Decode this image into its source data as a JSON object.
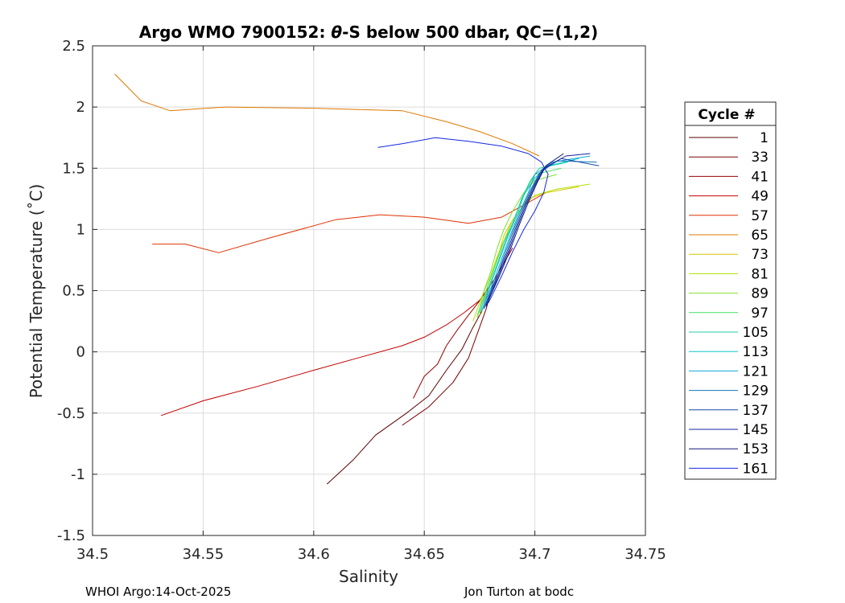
{
  "chart_data": {
    "type": "line",
    "title_prefix": "Argo WMO 7900152: ",
    "title_theta": "θ",
    "title_suffix": "-S below 500 dbar,  QC=(1,2)",
    "xlabel": "Salinity",
    "ylabel": "Potential Temperature (˚C)",
    "xlim": [
      34.5,
      34.75
    ],
    "ylim": [
      -1.5,
      2.5
    ],
    "xticks": [
      34.5,
      34.55,
      34.6,
      34.65,
      34.7,
      34.75
    ],
    "xtick_labels": [
      "34.5",
      "34.55",
      "34.6",
      "34.65",
      "34.7",
      "34.75"
    ],
    "yticks": [
      -1.5,
      -1,
      -0.5,
      0,
      0.5,
      1,
      1.5,
      2,
      2.5
    ],
    "ytick_labels": [
      "-1.5",
      "-1",
      "-0.5",
      "0",
      "0.5",
      "1",
      "1.5",
      "2",
      "2.5"
    ],
    "grid": true,
    "legend_title": "Cycle #",
    "legend_position": "outside-right",
    "series": [
      {
        "name": "1",
        "color": "#5a0000",
        "points": [
          [
            34.606,
            -1.08
          ],
          [
            34.618,
            -0.88
          ],
          [
            34.628,
            -0.68
          ],
          [
            34.642,
            -0.5
          ],
          [
            34.652,
            -0.36
          ],
          [
            34.66,
            -0.15
          ],
          [
            34.667,
            0.02
          ],
          [
            34.672,
            0.2
          ],
          [
            34.676,
            0.33
          ],
          [
            34.679,
            0.5
          ]
        ]
      },
      {
        "name": "33",
        "color": "#7a0000",
        "points": [
          [
            34.64,
            -0.6
          ],
          [
            34.652,
            -0.45
          ],
          [
            34.663,
            -0.25
          ],
          [
            34.67,
            -0.05
          ],
          [
            34.675,
            0.2
          ],
          [
            34.678,
            0.35
          ],
          [
            34.681,
            0.55
          ]
        ]
      },
      {
        "name": "41",
        "color": "#9a0000",
        "points": [
          [
            34.645,
            -0.38
          ],
          [
            34.65,
            -0.2
          ],
          [
            34.656,
            -0.1
          ],
          [
            34.66,
            0.05
          ],
          [
            34.665,
            0.18
          ],
          [
            34.67,
            0.3
          ],
          [
            34.676,
            0.44
          ],
          [
            34.682,
            0.6
          ]
        ]
      },
      {
        "name": "49",
        "color": "#c40000",
        "points": [
          [
            34.531,
            -0.52
          ],
          [
            34.55,
            -0.4
          ],
          [
            34.575,
            -0.28
          ],
          [
            34.6,
            -0.15
          ],
          [
            34.62,
            -0.05
          ],
          [
            34.64,
            0.05
          ],
          [
            34.65,
            0.12
          ],
          [
            34.66,
            0.22
          ],
          [
            34.668,
            0.32
          ],
          [
            34.675,
            0.42
          ],
          [
            34.682,
            0.6
          ],
          [
            34.69,
            0.85
          ]
        ]
      },
      {
        "name": "57",
        "color": "#e03000",
        "points": [
          [
            34.527,
            0.88
          ],
          [
            34.542,
            0.88
          ],
          [
            34.557,
            0.81
          ],
          [
            34.58,
            0.93
          ],
          [
            34.61,
            1.08
          ],
          [
            34.63,
            1.12
          ],
          [
            34.65,
            1.1
          ],
          [
            34.67,
            1.05
          ],
          [
            34.685,
            1.1
          ],
          [
            34.695,
            1.2
          ],
          [
            34.705,
            1.3
          ]
        ]
      },
      {
        "name": "65",
        "color": "#e07800",
        "points": [
          [
            34.51,
            2.27
          ],
          [
            34.522,
            2.05
          ],
          [
            34.535,
            1.97
          ],
          [
            34.56,
            2.0
          ],
          [
            34.6,
            1.99
          ],
          [
            34.64,
            1.97
          ],
          [
            34.66,
            1.88
          ],
          [
            34.675,
            1.8
          ],
          [
            34.69,
            1.7
          ],
          [
            34.702,
            1.6
          ]
        ]
      },
      {
        "name": "73",
        "color": "#d8c800",
        "points": [
          [
            34.675,
            0.3
          ],
          [
            34.678,
            0.5
          ],
          [
            34.681,
            0.65
          ],
          [
            34.684,
            0.82
          ],
          [
            34.686,
            0.95
          ],
          [
            34.689,
            1.05
          ],
          [
            34.693,
            1.15
          ],
          [
            34.697,
            1.25
          ],
          [
            34.705,
            1.3
          ],
          [
            34.72,
            1.35
          ]
        ]
      },
      {
        "name": "81",
        "color": "#b0e000",
        "points": [
          [
            34.672,
            0.25
          ],
          [
            34.676,
            0.45
          ],
          [
            34.68,
            0.62
          ],
          [
            34.683,
            0.78
          ],
          [
            34.687,
            0.95
          ],
          [
            34.69,
            1.08
          ],
          [
            34.695,
            1.2
          ],
          [
            34.7,
            1.28
          ],
          [
            34.71,
            1.33
          ],
          [
            34.725,
            1.37
          ]
        ]
      },
      {
        "name": "89",
        "color": "#80e030",
        "points": [
          [
            34.674,
            0.28
          ],
          [
            34.677,
            0.5
          ],
          [
            34.68,
            0.65
          ],
          [
            34.683,
            0.85
          ],
          [
            34.686,
            1.0
          ],
          [
            34.69,
            1.15
          ],
          [
            34.695,
            1.3
          ],
          [
            34.7,
            1.4
          ],
          [
            34.71,
            1.45
          ]
        ]
      },
      {
        "name": "97",
        "color": "#40e060",
        "points": [
          [
            34.674,
            0.3
          ],
          [
            34.678,
            0.5
          ],
          [
            34.682,
            0.7
          ],
          [
            34.686,
            0.9
          ],
          [
            34.69,
            1.05
          ],
          [
            34.693,
            1.2
          ],
          [
            34.697,
            1.35
          ],
          [
            34.7,
            1.45
          ],
          [
            34.712,
            1.5
          ]
        ]
      },
      {
        "name": "105",
        "color": "#20d0a0",
        "points": [
          [
            34.675,
            0.32
          ],
          [
            34.679,
            0.52
          ],
          [
            34.683,
            0.72
          ],
          [
            34.687,
            0.92
          ],
          [
            34.691,
            1.1
          ],
          [
            34.694,
            1.25
          ],
          [
            34.698,
            1.4
          ],
          [
            34.702,
            1.5
          ],
          [
            34.715,
            1.55
          ]
        ]
      },
      {
        "name": "113",
        "color": "#10c8d0",
        "points": [
          [
            34.676,
            0.33
          ],
          [
            34.68,
            0.55
          ],
          [
            34.684,
            0.75
          ],
          [
            34.688,
            0.95
          ],
          [
            34.692,
            1.12
          ],
          [
            34.695,
            1.28
          ],
          [
            34.7,
            1.42
          ],
          [
            34.706,
            1.52
          ],
          [
            34.72,
            1.58
          ]
        ]
      },
      {
        "name": "121",
        "color": "#10a8d8",
        "points": [
          [
            34.676,
            0.34
          ],
          [
            34.681,
            0.56
          ],
          [
            34.685,
            0.76
          ],
          [
            34.689,
            0.96
          ],
          [
            34.693,
            1.14
          ],
          [
            34.697,
            1.3
          ],
          [
            34.7,
            1.45
          ],
          [
            34.708,
            1.55
          ],
          [
            34.725,
            1.6
          ]
        ]
      },
      {
        "name": "129",
        "color": "#1478b8",
        "points": [
          [
            34.677,
            0.35
          ],
          [
            34.682,
            0.57
          ],
          [
            34.686,
            0.78
          ],
          [
            34.69,
            0.98
          ],
          [
            34.694,
            1.16
          ],
          [
            34.698,
            1.32
          ],
          [
            34.702,
            1.46
          ],
          [
            34.71,
            1.56
          ],
          [
            34.728,
            1.55
          ]
        ]
      },
      {
        "name": "137",
        "color": "#1848a8",
        "points": [
          [
            34.677,
            0.36
          ],
          [
            34.682,
            0.58
          ],
          [
            34.687,
            0.8
          ],
          [
            34.691,
            1.0
          ],
          [
            34.695,
            1.18
          ],
          [
            34.699,
            1.34
          ],
          [
            34.703,
            1.48
          ],
          [
            34.712,
            1.58
          ],
          [
            34.729,
            1.52
          ]
        ]
      },
      {
        "name": "145",
        "color": "#1820a0",
        "points": [
          [
            34.678,
            0.37
          ],
          [
            34.683,
            0.6
          ],
          [
            34.688,
            0.82
          ],
          [
            34.692,
            1.02
          ],
          [
            34.696,
            1.2
          ],
          [
            34.7,
            1.36
          ],
          [
            34.704,
            1.5
          ],
          [
            34.714,
            1.6
          ],
          [
            34.725,
            1.62
          ]
        ]
      },
      {
        "name": "153",
        "color": "#101878",
        "points": [
          [
            34.678,
            0.38
          ],
          [
            34.684,
            0.62
          ],
          [
            34.689,
            0.84
          ],
          [
            34.693,
            1.04
          ],
          [
            34.697,
            1.22
          ],
          [
            34.701,
            1.38
          ],
          [
            34.705,
            1.52
          ],
          [
            34.713,
            1.62
          ]
        ]
      },
      {
        "name": "161",
        "color": "#1428e0",
        "points": [
          [
            34.629,
            1.67
          ],
          [
            34.64,
            1.7
          ],
          [
            34.655,
            1.75
          ],
          [
            34.67,
            1.72
          ],
          [
            34.685,
            1.68
          ],
          [
            34.697,
            1.62
          ],
          [
            34.703,
            1.55
          ],
          [
            34.706,
            1.45
          ],
          [
            34.704,
            1.3
          ],
          [
            34.7,
            1.15
          ],
          [
            34.695,
            1.0
          ],
          [
            34.69,
            0.82
          ],
          [
            34.685,
            0.62
          ],
          [
            34.679,
            0.4
          ]
        ]
      }
    ]
  },
  "footer": {
    "left": "WHOI Argo:14-Oct-2025",
    "right": "Jon Turton at bodc"
  }
}
